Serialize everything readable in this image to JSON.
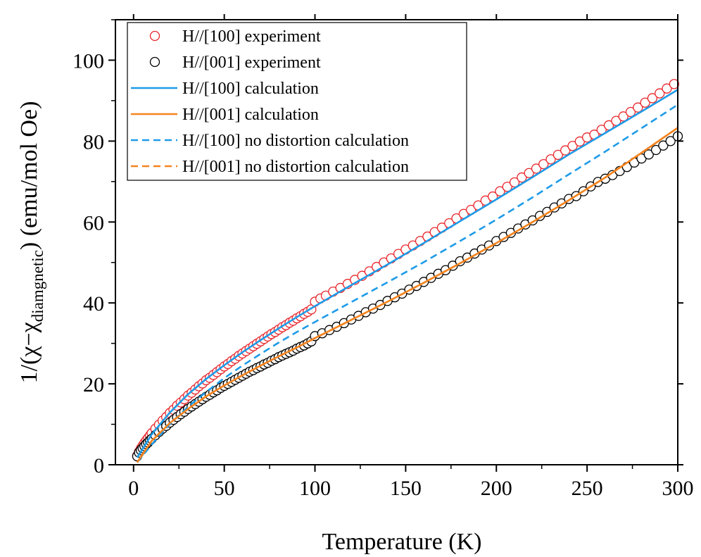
{
  "chart_data": {
    "type": "scatter",
    "xlabel": "Temperature (K)",
    "ylabel": {
      "prefix": "1/(χ−χ",
      "subscript": "diamgnetic",
      "suffix": ") (emu/mol Oe)"
    },
    "xlim": [
      -10,
      300
    ],
    "ylim": [
      0,
      110
    ],
    "xticks": [
      0,
      50,
      100,
      150,
      200,
      250,
      300
    ],
    "yticks": [
      0,
      20,
      40,
      60,
      80,
      100
    ],
    "grid": false,
    "legend_position": "top-left",
    "series": [
      {
        "name": "H//[100] experiment",
        "kind": "scatter",
        "color": "#e8262b",
        "points": [
          [
            2,
            2.2
          ],
          [
            3,
            3.2
          ],
          [
            4,
            4.0
          ],
          [
            5,
            4.7
          ],
          [
            6,
            5.4
          ],
          [
            7,
            6.0
          ],
          [
            8,
            6.6
          ],
          [
            9,
            7.2
          ],
          [
            10,
            7.8
          ],
          [
            12,
            8.9
          ],
          [
            14,
            9.9
          ],
          [
            16,
            10.9
          ],
          [
            18,
            11.8
          ],
          [
            20,
            12.8
          ],
          [
            22,
            13.6
          ],
          [
            24,
            14.6
          ],
          [
            26,
            15.4
          ],
          [
            28,
            16.2
          ],
          [
            30,
            17.1
          ],
          [
            32,
            17.8
          ],
          [
            34,
            18.6
          ],
          [
            36,
            19.4
          ],
          [
            38,
            20.1
          ],
          [
            40,
            20.9
          ],
          [
            42,
            21.5
          ],
          [
            44,
            22.2
          ],
          [
            46,
            22.9
          ],
          [
            48,
            23.6
          ],
          [
            50,
            24.3
          ],
          [
            52,
            24.9
          ],
          [
            54,
            25.6
          ],
          [
            56,
            26.2
          ],
          [
            58,
            26.9
          ],
          [
            60,
            27.5
          ],
          [
            62,
            28.1
          ],
          [
            64,
            28.7
          ],
          [
            66,
            29.3
          ],
          [
            68,
            29.9
          ],
          [
            70,
            30.5
          ],
          [
            72,
            31.1
          ],
          [
            74,
            31.7
          ],
          [
            76,
            32.3
          ],
          [
            78,
            32.8
          ],
          [
            80,
            33.4
          ],
          [
            82,
            34.0
          ],
          [
            84,
            34.5
          ],
          [
            86,
            35.1
          ],
          [
            88,
            35.6
          ],
          [
            90,
            36.2
          ],
          [
            92,
            36.7
          ],
          [
            94,
            37.3
          ],
          [
            96,
            37.8
          ],
          [
            98,
            38.4
          ],
          [
            100,
            40.3
          ],
          [
            103,
            41.1
          ],
          [
            106,
            41.8
          ],
          [
            110,
            42.8
          ],
          [
            114,
            43.7
          ],
          [
            118,
            44.7
          ],
          [
            122,
            45.7
          ],
          [
            126,
            46.7
          ],
          [
            130,
            47.8
          ],
          [
            134,
            48.9
          ],
          [
            138,
            50.0
          ],
          [
            142,
            51.0
          ],
          [
            146,
            52.1
          ],
          [
            150,
            53.2
          ],
          [
            154,
            54.2
          ],
          [
            158,
            55.3
          ],
          [
            162,
            56.4
          ],
          [
            166,
            57.5
          ],
          [
            170,
            58.6
          ],
          [
            174,
            59.7
          ],
          [
            178,
            60.9
          ],
          [
            182,
            62.0
          ],
          [
            186,
            63.0
          ],
          [
            190,
            64.1
          ],
          [
            194,
            65.3
          ],
          [
            198,
            66.3
          ],
          [
            202,
            67.6
          ],
          [
            206,
            68.7
          ],
          [
            210,
            69.8
          ],
          [
            214,
            71.0
          ],
          [
            218,
            72.1
          ],
          [
            222,
            73.2
          ],
          [
            226,
            74.3
          ],
          [
            230,
            75.5
          ],
          [
            234,
            76.6
          ],
          [
            238,
            77.7
          ],
          [
            242,
            78.8
          ],
          [
            246,
            79.9
          ],
          [
            250,
            80.9
          ],
          [
            254,
            81.6
          ],
          [
            258,
            82.8
          ],
          [
            262,
            83.9
          ],
          [
            266,
            85.0
          ],
          [
            270,
            86.1
          ],
          [
            274,
            87.2
          ],
          [
            278,
            88.3
          ],
          [
            282,
            89.5
          ],
          [
            286,
            90.6
          ],
          [
            290,
            91.8
          ],
          [
            294,
            93.0
          ],
          [
            298,
            94.1
          ]
        ]
      },
      {
        "name": "H//[001] experiment",
        "kind": "scatter",
        "color": "#000000",
        "points": [
          [
            2,
            2.1
          ],
          [
            3,
            3.0
          ],
          [
            4,
            3.6
          ],
          [
            5,
            4.1
          ],
          [
            6,
            4.6
          ],
          [
            7,
            5.1
          ],
          [
            8,
            5.5
          ],
          [
            9,
            6.0
          ],
          [
            10,
            6.4
          ],
          [
            12,
            7.3
          ],
          [
            14,
            8.1
          ],
          [
            16,
            8.9
          ],
          [
            18,
            9.6
          ],
          [
            20,
            10.4
          ],
          [
            22,
            11.1
          ],
          [
            24,
            11.8
          ],
          [
            26,
            12.5
          ],
          [
            28,
            13.1
          ],
          [
            30,
            13.8
          ],
          [
            32,
            14.4
          ],
          [
            34,
            15.0
          ],
          [
            36,
            15.6
          ],
          [
            38,
            16.2
          ],
          [
            40,
            16.8
          ],
          [
            42,
            17.3
          ],
          [
            44,
            17.9
          ],
          [
            46,
            18.4
          ],
          [
            48,
            19.0
          ],
          [
            50,
            19.5
          ],
          [
            52,
            20.0
          ],
          [
            54,
            20.5
          ],
          [
            56,
            21.0
          ],
          [
            58,
            21.5
          ],
          [
            60,
            22.0
          ],
          [
            62,
            22.5
          ],
          [
            64,
            23.0
          ],
          [
            66,
            23.4
          ],
          [
            68,
            23.9
          ],
          [
            70,
            24.3
          ],
          [
            72,
            24.8
          ],
          [
            74,
            25.2
          ],
          [
            76,
            25.7
          ],
          [
            78,
            26.1
          ],
          [
            80,
            26.6
          ],
          [
            82,
            27.0
          ],
          [
            84,
            27.4
          ],
          [
            86,
            27.8
          ],
          [
            88,
            28.2
          ],
          [
            90,
            28.7
          ],
          [
            92,
            29.1
          ],
          [
            94,
            29.5
          ],
          [
            96,
            30.0
          ],
          [
            98,
            30.5
          ],
          [
            100,
            31.8
          ],
          [
            104,
            32.5
          ],
          [
            108,
            33.3
          ],
          [
            112,
            34.1
          ],
          [
            116,
            35.0
          ],
          [
            120,
            35.9
          ],
          [
            124,
            36.8
          ],
          [
            128,
            37.7
          ],
          [
            132,
            38.6
          ],
          [
            136,
            39.5
          ],
          [
            140,
            40.5
          ],
          [
            144,
            41.4
          ],
          [
            148,
            42.3
          ],
          [
            152,
            43.3
          ],
          [
            156,
            44.2
          ],
          [
            160,
            45.2
          ],
          [
            164,
            46.2
          ],
          [
            168,
            47.2
          ],
          [
            172,
            48.1
          ],
          [
            176,
            49.2
          ],
          [
            180,
            50.3
          ],
          [
            184,
            51.2
          ],
          [
            188,
            52.2
          ],
          [
            192,
            53.2
          ],
          [
            196,
            54.2
          ],
          [
            200,
            55.3
          ],
          [
            204,
            56.3
          ],
          [
            208,
            57.3
          ],
          [
            212,
            58.4
          ],
          [
            216,
            59.4
          ],
          [
            220,
            60.4
          ],
          [
            224,
            61.5
          ],
          [
            228,
            62.5
          ],
          [
            232,
            63.6
          ],
          [
            236,
            64.6
          ],
          [
            240,
            65.7
          ],
          [
            244,
            66.4
          ],
          [
            248,
            67.6
          ],
          [
            252,
            68.8
          ],
          [
            256,
            69.9
          ],
          [
            260,
            70.7
          ],
          [
            264,
            71.6
          ],
          [
            268,
            72.6
          ],
          [
            272,
            73.6
          ],
          [
            276,
            74.7
          ],
          [
            280,
            75.7
          ],
          [
            284,
            76.7
          ],
          [
            288,
            77.8
          ],
          [
            292,
            78.9
          ],
          [
            296,
            80.0
          ],
          [
            300,
            81.2
          ]
        ]
      },
      {
        "name": "H//[100] calculation",
        "kind": "line",
        "dashed": false,
        "color": "#1e9be8",
        "points": [
          [
            2,
            1.8
          ],
          [
            10,
            7.5
          ],
          [
            20,
            12.9
          ],
          [
            30,
            17.4
          ],
          [
            40,
            21.2
          ],
          [
            50,
            24.6
          ],
          [
            60,
            27.8
          ],
          [
            70,
            30.8
          ],
          [
            80,
            33.7
          ],
          [
            90,
            36.5
          ],
          [
            100,
            39.2
          ],
          [
            120,
            44.4
          ],
          [
            140,
            49.5
          ],
          [
            160,
            54.8
          ],
          [
            180,
            60.2
          ],
          [
            200,
            65.6
          ],
          [
            220,
            71.1
          ],
          [
            240,
            76.7
          ],
          [
            260,
            82.0
          ],
          [
            280,
            87.3
          ],
          [
            300,
            92.7
          ]
        ]
      },
      {
        "name": "H//[001] calculation",
        "kind": "line",
        "dashed": false,
        "color": "#f5841f",
        "points": [
          [
            2,
            0.6
          ],
          [
            10,
            5.9
          ],
          [
            20,
            10.3
          ],
          [
            30,
            13.8
          ],
          [
            40,
            16.9
          ],
          [
            50,
            19.6
          ],
          [
            60,
            22.1
          ],
          [
            70,
            24.5
          ],
          [
            80,
            26.8
          ],
          [
            90,
            29.0
          ],
          [
            100,
            31.3
          ],
          [
            120,
            35.8
          ],
          [
            140,
            40.3
          ],
          [
            160,
            45.0
          ],
          [
            180,
            49.8
          ],
          [
            200,
            54.8
          ],
          [
            220,
            60.0
          ],
          [
            240,
            65.4
          ],
          [
            260,
            71.0
          ],
          [
            280,
            77.1
          ],
          [
            300,
            83.3
          ]
        ]
      },
      {
        "name": "H//[100] no distortion calculation",
        "kind": "line",
        "dashed": true,
        "color": "#1e9be8",
        "points": [
          [
            2,
            0.6
          ],
          [
            10,
            5.0
          ],
          [
            20,
            10.1
          ],
          [
            30,
            14.3
          ],
          [
            40,
            18.0
          ],
          [
            50,
            21.4
          ],
          [
            60,
            24.5
          ],
          [
            70,
            27.4
          ],
          [
            80,
            30.2
          ],
          [
            90,
            32.8
          ],
          [
            100,
            35.3
          ],
          [
            120,
            40.2
          ],
          [
            140,
            45.1
          ],
          [
            160,
            50.1
          ],
          [
            180,
            55.3
          ],
          [
            200,
            60.6
          ],
          [
            220,
            66.1
          ],
          [
            240,
            71.8
          ],
          [
            260,
            77.4
          ],
          [
            280,
            83.2
          ],
          [
            300,
            89.0
          ]
        ]
      },
      {
        "name": "H//[001] no distortion calculation",
        "kind": "line",
        "dashed": true,
        "color": "#f5841f",
        "points": [
          [
            2,
            0.6
          ],
          [
            10,
            5.9
          ],
          [
            20,
            10.3
          ],
          [
            30,
            13.8
          ],
          [
            40,
            16.9
          ],
          [
            50,
            19.6
          ],
          [
            60,
            22.1
          ],
          [
            70,
            24.5
          ],
          [
            80,
            26.8
          ],
          [
            90,
            29.0
          ],
          [
            100,
            31.3
          ],
          [
            120,
            35.8
          ],
          [
            140,
            40.3
          ],
          [
            160,
            45.0
          ],
          [
            180,
            49.8
          ],
          [
            200,
            54.8
          ],
          [
            220,
            60.0
          ],
          [
            240,
            65.4
          ],
          [
            260,
            71.0
          ],
          [
            280,
            77.1
          ],
          [
            300,
            83.3
          ]
        ]
      }
    ]
  }
}
